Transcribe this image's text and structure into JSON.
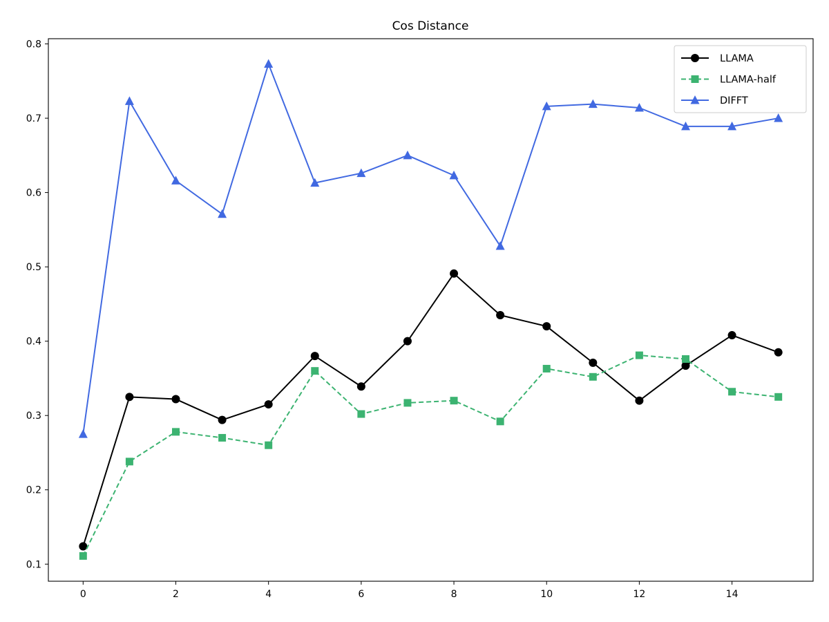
{
  "chart_data": {
    "type": "line",
    "title": "Cos Distance",
    "xlabel": "",
    "ylabel": "",
    "xlim": [
      -0.75,
      15.75
    ],
    "ylim": [
      0.077,
      0.807
    ],
    "xticks": [
      0,
      2,
      4,
      6,
      8,
      10,
      12,
      14
    ],
    "yticks": [
      0.1,
      0.2,
      0.3,
      0.4,
      0.5,
      0.6,
      0.7,
      0.8
    ],
    "grid": false,
    "legend_position": "top-right",
    "x": [
      0,
      1,
      2,
      3,
      4,
      5,
      6,
      7,
      8,
      9,
      10,
      11,
      12,
      13,
      14,
      15
    ],
    "series": [
      {
        "name": "LLAMA",
        "color": "#000000",
        "line_style": "solid",
        "marker": "circle",
        "values": [
          0.124,
          0.325,
          0.322,
          0.294,
          0.315,
          0.38,
          0.339,
          0.4,
          0.491,
          0.435,
          0.42,
          0.371,
          0.32,
          0.367,
          0.408,
          0.385
        ]
      },
      {
        "name": "LLAMA-half",
        "color": "#3cb371",
        "line_style": "dashed",
        "marker": "square",
        "values": [
          0.111,
          0.238,
          0.278,
          0.27,
          0.26,
          0.36,
          0.302,
          0.317,
          0.32,
          0.292,
          0.363,
          0.352,
          0.381,
          0.376,
          0.332,
          0.325
        ]
      },
      {
        "name": "DIFFT",
        "color": "#4169e1",
        "line_style": "solid",
        "marker": "triangle",
        "values": [
          0.275,
          0.723,
          0.616,
          0.571,
          0.773,
          0.613,
          0.626,
          0.65,
          0.623,
          0.528,
          0.716,
          0.719,
          0.714,
          0.689,
          0.689,
          0.7
        ]
      }
    ]
  }
}
